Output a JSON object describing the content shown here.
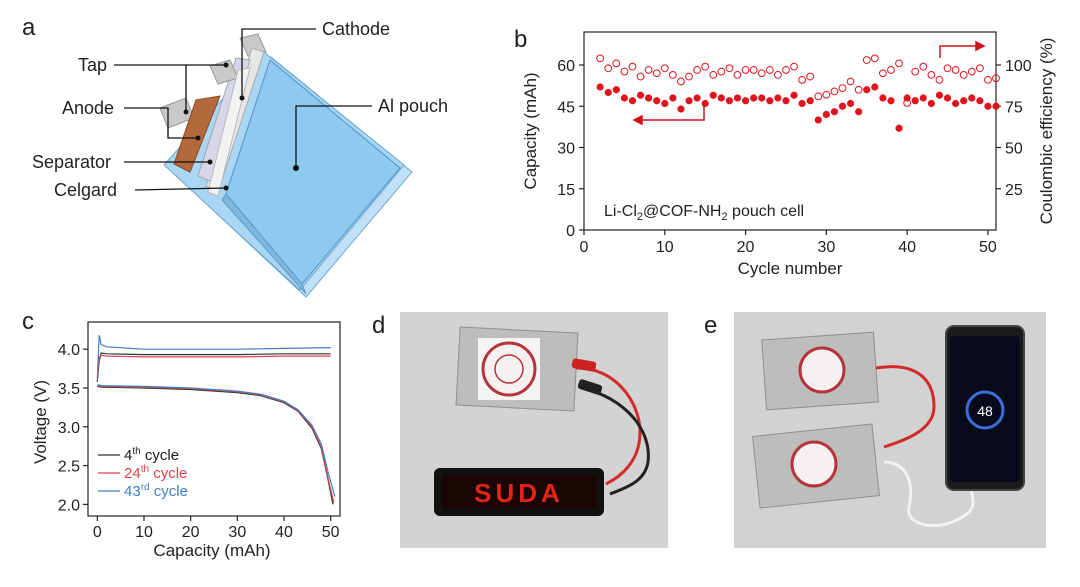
{
  "panel_labels": {
    "a": "a",
    "b": "b",
    "c": "c",
    "d": "d",
    "e": "e"
  },
  "diagram": {
    "labels": {
      "tap": "Tap",
      "cathode": "Cathode",
      "anode": "Anode",
      "al_pouch": "Al pouch",
      "separator": "Separator",
      "celgard": "Celgard"
    },
    "colors": {
      "pouch": "#8ec9f0",
      "anode": "#b4693d",
      "tap": "#c9c9c9"
    }
  },
  "photo_d": {
    "display_text": "SUDA",
    "display_color": "#e2231a"
  },
  "photo_e": {
    "phone_text": "48"
  },
  "colors": {
    "capacity": "#e0141c",
    "ce": "#e0141c",
    "cycle4": "#333333",
    "cycle24": "#d9454a",
    "cycle43": "#3d7fcc"
  },
  "chart_data": [
    {
      "type": "scatter",
      "panel": "b",
      "annotation_prefix": "Li-Cl",
      "annotation_sub1": "2",
      "annotation_mid": "@COF-NH",
      "annotation_sub2": "2",
      "annotation_suffix": " pouch cell",
      "xlabel": "Cycle number",
      "ylabel": "Capacity (mAh)",
      "y2label": "Coulombic efficiency (%)",
      "xlim": [
        0,
        51
      ],
      "ylim": [
        0,
        72
      ],
      "y2lim": [
        0,
        120
      ],
      "xticks": [
        "0",
        "10",
        "20",
        "30",
        "40",
        "50"
      ],
      "yticks": [
        "0",
        "15",
        "30",
        "45",
        "60"
      ],
      "y2ticks": [
        "25",
        "50",
        "75",
        "100"
      ],
      "x": [
        2,
        3,
        4,
        5,
        6,
        7,
        8,
        9,
        10,
        11,
        12,
        13,
        14,
        15,
        16,
        17,
        18,
        19,
        20,
        21,
        22,
        23,
        24,
        25,
        26,
        27,
        28,
        29,
        30,
        31,
        32,
        33,
        34,
        35,
        36,
        37,
        38,
        39,
        40,
        41,
        42,
        43,
        44,
        45,
        46,
        47,
        48,
        49,
        50,
        51
      ],
      "series": [
        {
          "axis": "left",
          "marker": "filled",
          "values": [
            52,
            50,
            51,
            48,
            47,
            49,
            48,
            47,
            46,
            48,
            44,
            47,
            48,
            46,
            49,
            48,
            47,
            48,
            47,
            48,
            48,
            47,
            48,
            47,
            49,
            46,
            47,
            40,
            42,
            43,
            45,
            46,
            43,
            51,
            52,
            48,
            47,
            37,
            48,
            47,
            48,
            46,
            49,
            48,
            46,
            47,
            48,
            47,
            45,
            45
          ]
        },
        {
          "axis": "right",
          "marker": "open",
          "values": [
            104,
            98,
            101,
            96,
            99,
            93,
            97,
            95,
            98,
            94,
            90,
            93,
            97,
            99,
            94,
            96,
            98,
            94,
            97,
            97,
            95,
            97,
            94,
            97,
            99,
            91,
            93,
            81,
            82,
            84,
            86,
            90,
            85,
            103,
            104,
            95,
            97,
            101,
            77,
            96,
            99,
            94,
            91,
            98,
            97,
            94,
            96,
            98,
            91,
            92
          ]
        }
      ]
    },
    {
      "type": "line",
      "panel": "c",
      "xlabel": "Capacity (mAh)",
      "ylabel": "Voltage (V)",
      "xlim": [
        -2,
        52
      ],
      "ylim": [
        1.85,
        4.35
      ],
      "xticks": [
        "0",
        "10",
        "20",
        "30",
        "40",
        "50"
      ],
      "yticks": [
        "2.0",
        "2.5",
        "3.0",
        "3.5",
        "4.0"
      ],
      "series": [
        {
          "name_base": "4",
          "name_sup": "th",
          "name_tail": " cycle",
          "color_key": "cycle4",
          "charge": [
            [
              0,
              3.58
            ],
            [
              0.4,
              3.85
            ],
            [
              0.8,
              3.95
            ],
            [
              2,
              3.94
            ],
            [
              10,
              3.93
            ],
            [
              20,
              3.93
            ],
            [
              30,
              3.93
            ],
            [
              40,
              3.94
            ],
            [
              50,
              3.94
            ]
          ],
          "discharge": [
            [
              0,
              3.52
            ],
            [
              1,
              3.51
            ],
            [
              10,
              3.5
            ],
            [
              20,
              3.48
            ],
            [
              30,
              3.44
            ],
            [
              35,
              3.4
            ],
            [
              40,
              3.31
            ],
            [
              43,
              3.2
            ],
            [
              46,
              2.98
            ],
            [
              48,
              2.72
            ],
            [
              49.5,
              2.3
            ],
            [
              50.5,
              2.0
            ]
          ]
        },
        {
          "name_base": "24",
          "name_sup": "th",
          "name_tail": " cycle",
          "color_key": "cycle24",
          "charge": [
            [
              0,
              3.6
            ],
            [
              0.4,
              3.9
            ],
            [
              0.8,
              3.92
            ],
            [
              2,
              3.91
            ],
            [
              10,
              3.9
            ],
            [
              20,
              3.9
            ],
            [
              30,
              3.9
            ],
            [
              40,
              3.91
            ],
            [
              50,
              3.91
            ]
          ],
          "discharge": [
            [
              0,
              3.53
            ],
            [
              1,
              3.52
            ],
            [
              10,
              3.51
            ],
            [
              20,
              3.49
            ],
            [
              30,
              3.45
            ],
            [
              35,
              3.41
            ],
            [
              40,
              3.32
            ],
            [
              43,
              3.21
            ],
            [
              46,
              3.0
            ],
            [
              48,
              2.74
            ],
            [
              49.5,
              2.32
            ],
            [
              50.7,
              2.02
            ]
          ]
        },
        {
          "name_base": "43",
          "name_sup": "rd",
          "name_tail": " cycle",
          "color_key": "cycle43",
          "charge": [
            [
              0,
              3.62
            ],
            [
              0.4,
              4.18
            ],
            [
              0.8,
              4.06
            ],
            [
              2,
              4.03
            ],
            [
              10,
              4.0
            ],
            [
              20,
              4.0
            ],
            [
              30,
              4.0
            ],
            [
              40,
              4.01
            ],
            [
              50,
              4.02
            ]
          ],
          "discharge": [
            [
              0,
              3.54
            ],
            [
              1,
              3.53
            ],
            [
              10,
              3.52
            ],
            [
              20,
              3.5
            ],
            [
              30,
              3.46
            ],
            [
              35,
              3.42
            ],
            [
              40,
              3.33
            ],
            [
              43,
              3.22
            ],
            [
              46,
              3.02
            ],
            [
              48,
              2.78
            ],
            [
              49.5,
              2.4
            ],
            [
              50.9,
              2.1
            ]
          ]
        }
      ]
    }
  ]
}
